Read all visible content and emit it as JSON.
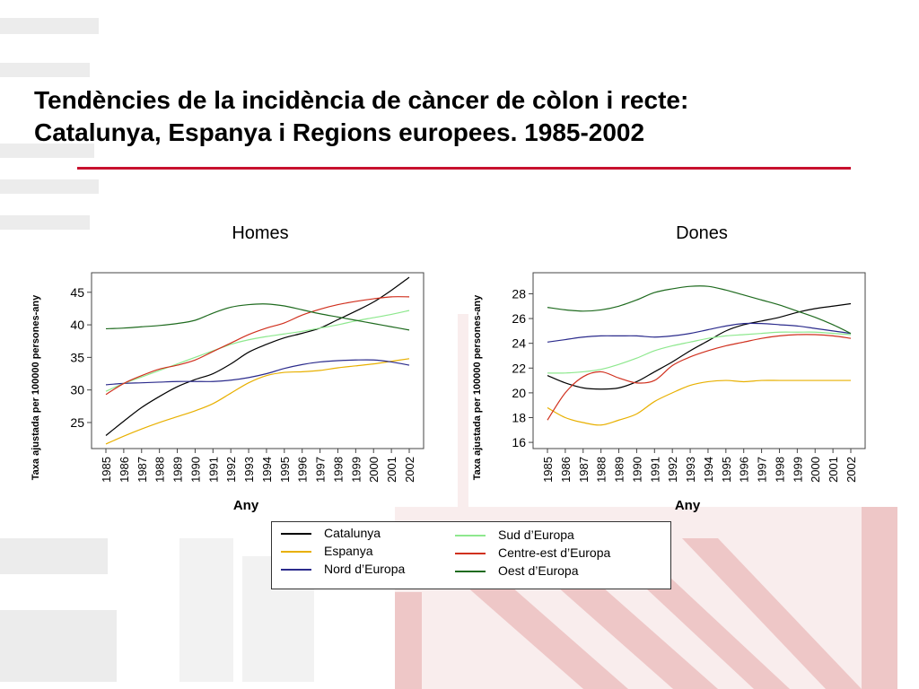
{
  "slide": {
    "title_line1": "Tendències de la incidència de càncer de còlon i recte:",
    "title_line2": "Catalunya, Espanya i Regions europees. 1985-2002"
  },
  "legend": [
    {
      "name": "Catalunya",
      "color": "#000000"
    },
    {
      "name": "Espanya",
      "color": "#e8b000"
    },
    {
      "name": "Nord d’Europa",
      "color": "#2b2b8c"
    },
    {
      "name": "Sud d’Europa",
      "color": "#8ee88e"
    },
    {
      "name": "Centre-est d’Europa",
      "color": "#d0301e"
    },
    {
      "name": "Oest d’Europa",
      "color": "#1f6b1f"
    }
  ],
  "chart_data": [
    {
      "type": "line",
      "title": "Homes",
      "xlabel": "Any",
      "ylabel": "Taxa ajustada per 100000 persones-any",
      "categories": [
        "1985",
        "1986",
        "1987",
        "1988",
        "1989",
        "1990",
        "1991",
        "1992",
        "1993",
        "1994",
        "1995",
        "1996",
        "1997",
        "1998",
        "1999",
        "2000",
        "2001",
        "2002"
      ],
      "yticks": [
        25,
        30,
        35,
        40,
        45
      ],
      "ylim": [
        21,
        48
      ],
      "series": [
        {
          "name": "Catalunya",
          "color": "#000000",
          "values": [
            23.0,
            25.2,
            27.3,
            29.0,
            30.5,
            31.6,
            32.5,
            34.0,
            35.8,
            37.0,
            38.0,
            38.7,
            39.5,
            40.8,
            42.1,
            43.5,
            45.3,
            47.3
          ]
        },
        {
          "name": "Espanya",
          "color": "#e8b000",
          "values": [
            21.7,
            22.9,
            24.0,
            25.0,
            25.9,
            26.8,
            27.9,
            29.5,
            31.1,
            32.2,
            32.7,
            32.8,
            33.0,
            33.4,
            33.7,
            34.0,
            34.4,
            34.8
          ]
        },
        {
          "name": "Nord d’Europa",
          "color": "#2b2b8c",
          "values": [
            30.8,
            31.0,
            31.1,
            31.2,
            31.3,
            31.3,
            31.3,
            31.5,
            31.9,
            32.5,
            33.3,
            33.9,
            34.3,
            34.5,
            34.6,
            34.6,
            34.3,
            33.8
          ]
        },
        {
          "name": "Sud d’Europa",
          "color": "#8ee88e",
          "values": [
            29.8,
            31.0,
            32.0,
            33.0,
            34.0,
            35.0,
            36.0,
            37.0,
            37.7,
            38.2,
            38.6,
            39.0,
            39.5,
            40.0,
            40.6,
            41.1,
            41.6,
            42.2
          ]
        },
        {
          "name": "Centre-est d’Europa",
          "color": "#d0301e",
          "values": [
            29.3,
            31.0,
            32.2,
            33.2,
            33.8,
            34.6,
            35.9,
            37.2,
            38.5,
            39.5,
            40.3,
            41.5,
            42.4,
            43.1,
            43.6,
            44.0,
            44.3,
            44.3
          ]
        },
        {
          "name": "Oest d’Europa",
          "color": "#1f6b1f",
          "values": [
            39.4,
            39.5,
            39.7,
            39.9,
            40.2,
            40.7,
            41.8,
            42.7,
            43.1,
            43.2,
            42.9,
            42.3,
            41.7,
            41.2,
            40.7,
            40.2,
            39.7,
            39.2
          ]
        }
      ]
    },
    {
      "type": "line",
      "title": "Dones",
      "xlabel": "Any",
      "ylabel": "Taxa ajustada per 100000 persones-any",
      "categories": [
        "1985",
        "1986",
        "1987",
        "1988",
        "1989",
        "1990",
        "1991",
        "1992",
        "1993",
        "1994",
        "1995",
        "1996",
        "1997",
        "1998",
        "1999",
        "2000",
        "2001",
        "2002"
      ],
      "yticks": [
        16,
        18,
        20,
        22,
        24,
        26,
        28
      ],
      "ylim": [
        15.5,
        29.7
      ],
      "series": [
        {
          "name": "Catalunya",
          "color": "#000000",
          "values": [
            21.4,
            20.8,
            20.4,
            20.3,
            20.4,
            20.9,
            21.7,
            22.5,
            23.4,
            24.2,
            25.0,
            25.5,
            25.8,
            26.1,
            26.5,
            26.8,
            27.0,
            27.2
          ]
        },
        {
          "name": "Espanya",
          "color": "#e8b000",
          "values": [
            18.8,
            18.0,
            17.6,
            17.4,
            17.8,
            18.3,
            19.3,
            20.0,
            20.6,
            20.9,
            21.0,
            20.9,
            21.0,
            21.0,
            21.0,
            21.0,
            21.0,
            21.0
          ]
        },
        {
          "name": "Nord d’Europa",
          "color": "#2b2b8c",
          "values": [
            24.1,
            24.3,
            24.5,
            24.6,
            24.6,
            24.6,
            24.5,
            24.6,
            24.8,
            25.1,
            25.4,
            25.6,
            25.6,
            25.5,
            25.4,
            25.2,
            25.0,
            24.8
          ]
        },
        {
          "name": "Sud d’Europa",
          "color": "#8ee88e",
          "values": [
            21.6,
            21.6,
            21.7,
            21.9,
            22.3,
            22.8,
            23.4,
            23.8,
            24.1,
            24.4,
            24.6,
            24.7,
            24.8,
            24.9,
            24.9,
            24.9,
            24.8,
            24.7
          ]
        },
        {
          "name": "Centre-est d’Europa",
          "color": "#d0301e",
          "values": [
            17.8,
            20.0,
            21.3,
            21.7,
            21.2,
            20.8,
            21.0,
            22.2,
            22.9,
            23.4,
            23.8,
            24.1,
            24.4,
            24.6,
            24.7,
            24.7,
            24.6,
            24.4
          ]
        },
        {
          "name": "Oest d’Europa",
          "color": "#1f6b1f",
          "values": [
            26.9,
            26.7,
            26.6,
            26.7,
            27.0,
            27.5,
            28.1,
            28.4,
            28.6,
            28.6,
            28.3,
            27.9,
            27.5,
            27.1,
            26.6,
            26.1,
            25.5,
            24.8
          ]
        }
      ]
    }
  ]
}
